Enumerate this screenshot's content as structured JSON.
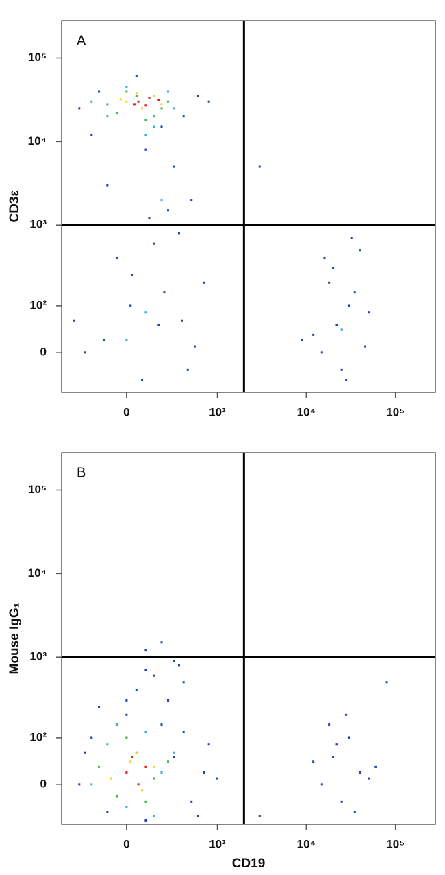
{
  "chart_data": [
    {
      "type": "scatter",
      "panel_label": "A",
      "y_label": "CD3ε",
      "scale": "biexponential",
      "xlim": [
        -500,
        280000
      ],
      "ylim": [
        -80,
        280000
      ],
      "xticks": [
        0,
        {
          "value": 1000,
          "label": "10³"
        },
        {
          "value": 10000,
          "label": "10⁴"
        },
        {
          "value": 100000,
          "label": "10⁵"
        }
      ],
      "yticks": [
        0,
        {
          "value": 100,
          "label": "10²"
        },
        {
          "value": 1000,
          "label": "10³"
        },
        {
          "value": 10000,
          "label": "10⁴"
        },
        {
          "value": 100000,
          "label": "10⁵"
        }
      ],
      "gate_x": 2000,
      "gate_y": 1000,
      "series": [
        {
          "color": "#1f3fbf",
          "x": [
            -300,
            -150,
            50,
            200,
            400,
            600,
            -200,
            100,
            300,
            -100,
            250,
            500,
            150,
            -50,
            350,
            700,
            20,
            180,
            -250,
            450,
            80,
            220,
            -120,
            380,
            30,
            15000,
            22000,
            30000,
            18000,
            40000,
            25000,
            12000,
            35000,
            20000,
            28000,
            50000,
            9000,
            45000,
            16000,
            32000,
            3000,
            800,
            -350,
            550,
            120
          ],
          "y": [
            25000,
            40000,
            60000,
            15000,
            20000,
            35000,
            12000,
            8000,
            5000,
            3000,
            1500,
            2000,
            600,
            400,
            800,
            200,
            100,
            50,
            0,
            -30,
            -50,
            150,
            20,
            60,
            250,
            0,
            50,
            100,
            200,
            500,
            -30,
            30,
            150,
            300,
            -50,
            80,
            20,
            10,
            400,
            700,
            5000,
            30000,
            60,
            10,
            1200
          ]
        },
        {
          "color": "#35b0e0",
          "x": [
            -100,
            0,
            150,
            300,
            -200,
            100,
            250,
            50,
            0,
            100,
            25000,
            200
          ],
          "y": [
            20000,
            45000,
            15000,
            25000,
            30000,
            12000,
            40000,
            35000,
            20,
            80,
            40,
            2000
          ]
        },
        {
          "color": "#3cb84a",
          "x": [
            -50,
            50,
            150,
            250,
            0,
            100,
            200,
            -100
          ],
          "y": [
            22000,
            35000,
            20000,
            30000,
            40000,
            18000,
            25000,
            28000
          ]
        },
        {
          "color": "#f0d020",
          "x": [
            0,
            80,
            150,
            50,
            200,
            -30
          ],
          "y": [
            30000,
            25000,
            35000,
            38000,
            28000,
            32000
          ]
        },
        {
          "color": "#e02020",
          "x": [
            60,
            120,
            100,
            180,
            40
          ],
          "y": [
            30000,
            33000,
            27000,
            31000,
            28000
          ]
        }
      ]
    },
    {
      "type": "scatter",
      "panel_label": "B",
      "y_label": "Mouse IgG₁",
      "x_label": "CD19",
      "scale": "biexponential",
      "xlim": [
        -500,
        280000
      ],
      "ylim": [
        -80,
        280000
      ],
      "xticks": [
        0,
        {
          "value": 1000,
          "label": "10³"
        },
        {
          "value": 10000,
          "label": "10⁴"
        },
        {
          "value": 100000,
          "label": "10⁵"
        }
      ],
      "yticks": [
        0,
        {
          "value": 100,
          "label": "10²"
        },
        {
          "value": 1000,
          "label": "10³"
        },
        {
          "value": 10000,
          "label": "10⁴"
        },
        {
          "value": 100000,
          "label": "10⁵"
        }
      ],
      "gate_x": 2000,
      "gate_y": 1000,
      "series": [
        {
          "color": "#1f3fbf",
          "x": [
            -300,
            -200,
            -100,
            0,
            100,
            200,
            300,
            500,
            700,
            -250,
            400,
            600,
            -150,
            250,
            50,
            150,
            350,
            -50,
            800,
            100,
            15000,
            20000,
            25000,
            30000,
            40000,
            18000,
            35000,
            22000,
            50000,
            12000,
            28000,
            60000,
            80000,
            200,
            300,
            100,
            0,
            400,
            1000,
            3000
          ],
          "y": [
            0,
            100,
            -50,
            200,
            -70,
            150,
            50,
            -30,
            20,
            60,
            120,
            -60,
            250,
            300,
            400,
            600,
            800,
            150,
            80,
            1200,
            0,
            50,
            -30,
            100,
            20,
            150,
            -50,
            80,
            10,
            40,
            200,
            30,
            500,
            1500,
            900,
            700,
            300,
            500,
            10,
            -60
          ]
        },
        {
          "color": "#35b0e0",
          "x": [
            -200,
            -100,
            0,
            100,
            200,
            300,
            -50,
            150
          ],
          "y": [
            0,
            80,
            -40,
            120,
            20,
            60,
            150,
            -60
          ]
        },
        {
          "color": "#3cb84a",
          "x": [
            -150,
            -50,
            50,
            150,
            250,
            0,
            100
          ],
          "y": [
            30,
            -20,
            60,
            10,
            40,
            100,
            -30
          ]
        },
        {
          "color": "#f0d020",
          "x": [
            -80,
            20,
            80,
            150,
            50
          ],
          "y": [
            10,
            40,
            -10,
            30,
            60
          ]
        },
        {
          "color": "#e02020",
          "x": [
            0,
            60,
            100,
            30
          ],
          "y": [
            20,
            0,
            30,
            50
          ]
        }
      ]
    }
  ]
}
